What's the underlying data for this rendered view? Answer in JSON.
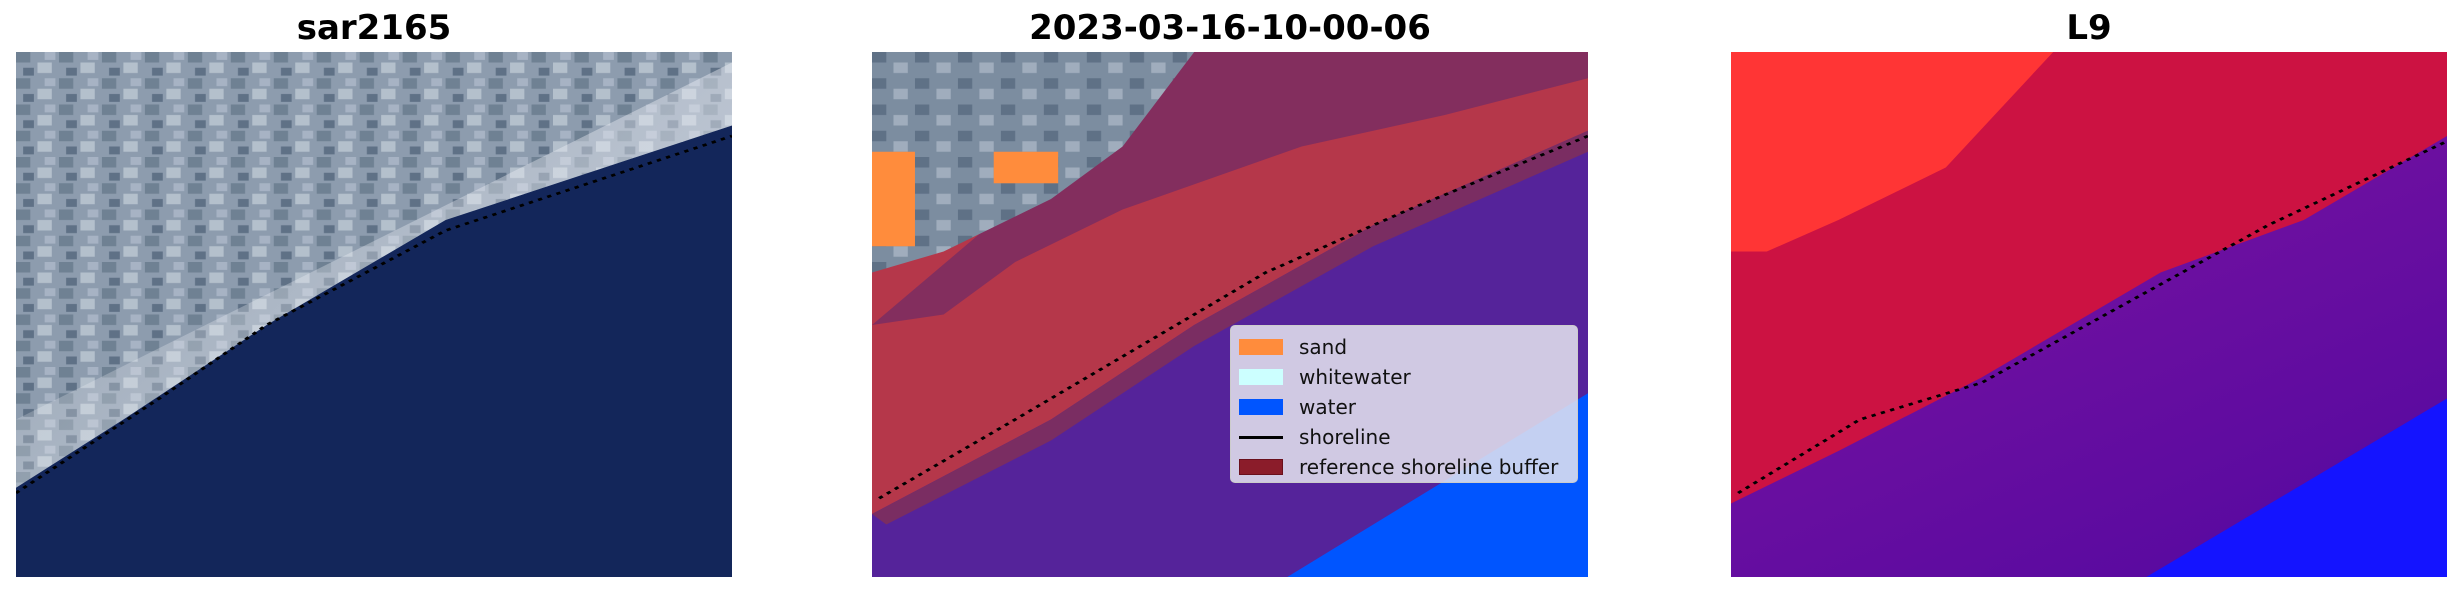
{
  "panels": [
    {
      "title": "sar2165",
      "kind": "rgb-image"
    },
    {
      "title": "2023-03-16-10-00-06",
      "kind": "classified-overlay"
    },
    {
      "title": "L9",
      "kind": "probability-map"
    }
  ],
  "legend": {
    "items": [
      {
        "label": "sand",
        "color": "#ff8c3c",
        "type": "patch"
      },
      {
        "label": "whitewater",
        "color": "#ccffff",
        "type": "patch"
      },
      {
        "label": "water",
        "color": "#0055ff",
        "type": "patch"
      },
      {
        "label": "shoreline",
        "color": "#000000",
        "type": "line"
      },
      {
        "label": "reference shoreline buffer",
        "color": "#8b1c2a",
        "type": "patch"
      }
    ]
  },
  "colors": {
    "land_gray": "#8d9cae",
    "dark_water": "#13265a",
    "class_land_red": "#b5374a",
    "buffer_dark": "#7a2d62",
    "class_water_purple": "#55239a",
    "prob_red": "#ff3535",
    "prob_crimson": "#cc1242",
    "prob_purple": "#6e10a0",
    "prob_blue": "#1414ff"
  }
}
